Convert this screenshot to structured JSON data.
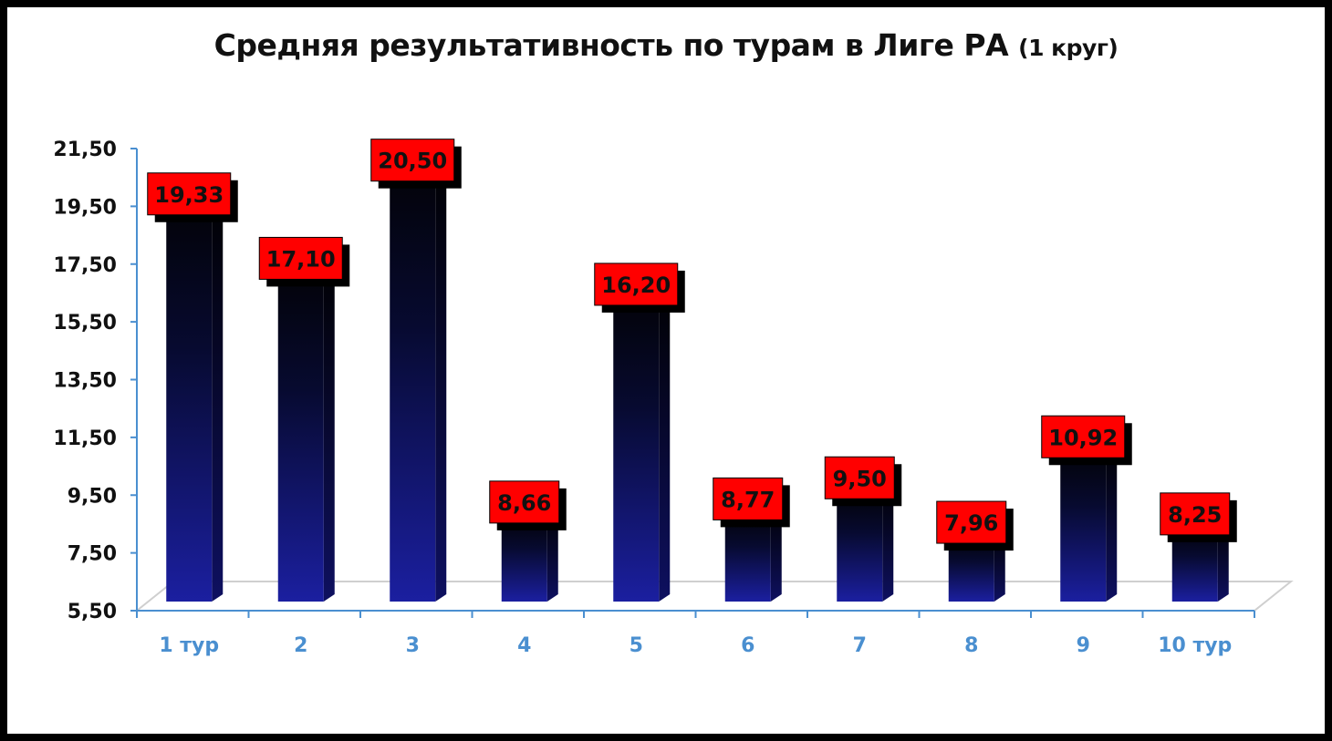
{
  "chart_data": {
    "type": "bar",
    "title": "Средняя результативность по турам в Лиге РА",
    "subtitle": "(1 круг)",
    "categories": [
      "1 тур",
      "2",
      "3",
      "4",
      "5",
      "6",
      "7",
      "8",
      "9",
      "10 тур"
    ],
    "values": [
      19.33,
      17.1,
      20.5,
      8.66,
      16.2,
      8.77,
      9.5,
      7.96,
      10.92,
      8.25
    ],
    "data_labels": [
      "19,33",
      "17,10",
      "20,50",
      "8,66",
      "16,20",
      "8,77",
      "9,50",
      "7,96",
      "10,92",
      "8,25"
    ],
    "yticks": [
      "5,50",
      "7,50",
      "9,50",
      "11,50",
      "13,50",
      "15,50",
      "17,50",
      "19,50",
      "21,50"
    ],
    "ytick_values": [
      5.5,
      7.5,
      9.5,
      11.5,
      13.5,
      15.5,
      17.5,
      19.5,
      21.5
    ],
    "ylim": [
      5.5,
      21.5
    ],
    "grid": false,
    "legend": "none",
    "colors": {
      "bar_top": "#03030a",
      "bar_bottom": "#1b1fa0",
      "bar_side": "#0d0f45",
      "label_bg": "#ff0000",
      "axis": "#4a8fd0",
      "floor": "#cfcfcf"
    }
  }
}
